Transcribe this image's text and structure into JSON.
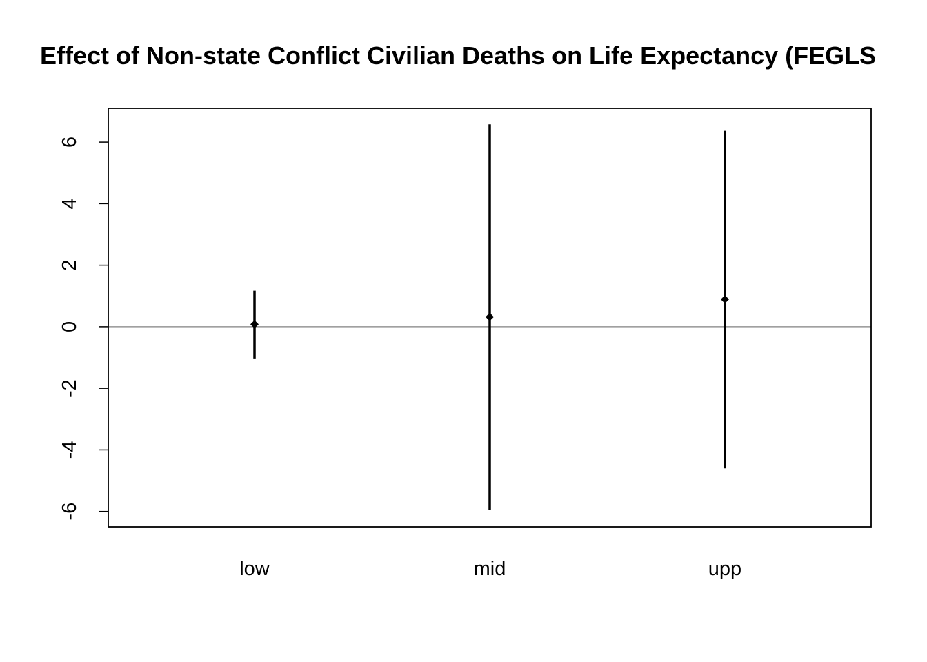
{
  "chart_data": {
    "type": "errorbar",
    "title": "Effect of Non-state Conflict Civilian Deaths on Life Expectancy (FEGLS",
    "xlabel": "",
    "ylabel": "",
    "categories": [
      "low",
      "mid",
      "upp"
    ],
    "estimates": [
      0.08,
      0.32,
      0.89
    ],
    "lower": [
      -1.03,
      -5.95,
      -4.6
    ],
    "upper": [
      1.17,
      6.58,
      6.37
    ],
    "yticks": [
      -6,
      -4,
      -2,
      0,
      2,
      4,
      6
    ],
    "ylim": [
      -6.5,
      7.1
    ],
    "reference_line": 0,
    "grid": false,
    "legend": "none",
    "colors": {
      "marks": "#000000",
      "reference_line": "#808080",
      "frame": "#000000"
    }
  }
}
